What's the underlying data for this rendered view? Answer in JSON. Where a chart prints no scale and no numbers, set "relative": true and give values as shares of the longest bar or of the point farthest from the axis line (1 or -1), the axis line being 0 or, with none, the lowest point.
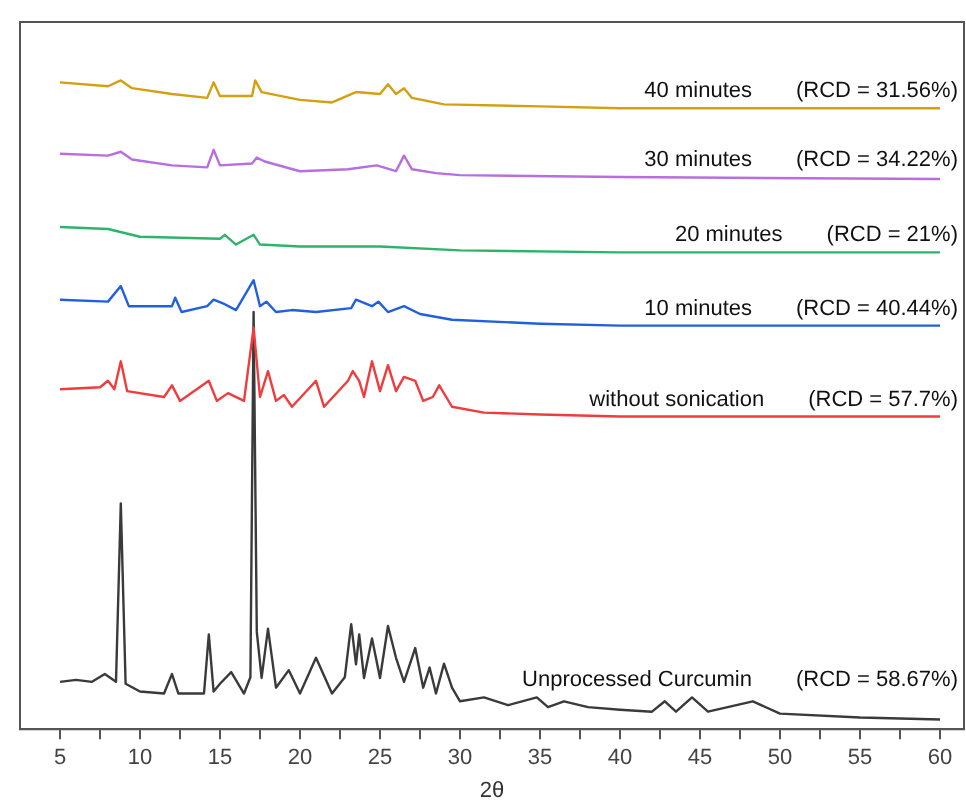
{
  "chart_data": {
    "type": "line",
    "relative": true,
    "xlabel": "2θ",
    "marker": "none",
    "line_style": "solid",
    "xlim": [
      2.5,
      61.5
    ],
    "xticks": [
      5,
      {
        "value": 7.5,
        "label": null
      },
      10,
      {
        "value": 12.5,
        "label": null
      },
      15,
      {
        "value": 17.5,
        "label": null
      },
      20,
      {
        "value": 22.5,
        "label": null
      },
      25,
      {
        "value": 27.5,
        "label": null
      },
      30,
      {
        "value": 32.5,
        "label": null
      },
      35,
      {
        "value": 37.5,
        "label": null
      },
      40,
      {
        "value": 42.5,
        "label": null
      },
      45,
      {
        "value": 47.5,
        "label": null
      },
      50,
      {
        "value": 52.5,
        "label": null
      },
      55,
      {
        "value": 57.5,
        "label": null
      },
      60
    ],
    "series": [
      {
        "name": "40 minutes",
        "color": "#d4a012",
        "x": [
          5,
          8,
          8.8,
          9.5,
          12,
          14.2,
          14.6,
          15,
          17,
          17.2,
          17.6,
          20,
          22,
          23.5,
          25,
          25.5,
          26,
          26.5,
          27,
          29,
          35,
          40,
          60
        ],
        "values": [
          0.997,
          0.991,
          1.0,
          0.988,
          0.979,
          0.973,
          0.997,
          0.976,
          0.976,
          1.0,
          0.982,
          0.97,
          0.966,
          0.982,
          0.979,
          0.994,
          0.979,
          0.988,
          0.973,
          0.963,
          0.96,
          0.957,
          0.957
        ]
      },
      {
        "name": "30 minutes",
        "color": "#b86ee0",
        "x": [
          5,
          8,
          8.8,
          9.5,
          12,
          14.2,
          14.6,
          15,
          17,
          17.3,
          17.8,
          20,
          23,
          24.8,
          26,
          26.5,
          27,
          28.5,
          30,
          40,
          60
        ],
        "values": [
          0.887,
          0.884,
          0.89,
          0.878,
          0.869,
          0.866,
          0.893,
          0.869,
          0.872,
          0.881,
          0.875,
          0.86,
          0.863,
          0.869,
          0.86,
          0.884,
          0.863,
          0.857,
          0.854,
          0.851,
          0.848
        ]
      },
      {
        "name": "20 minutes",
        "color": "#2fb36a",
        "x": [
          5,
          8,
          10,
          15,
          15.3,
          16,
          17.1,
          17.5,
          20,
          25,
          30,
          40,
          60
        ],
        "values": [
          0.774,
          0.771,
          0.759,
          0.756,
          0.762,
          0.747,
          0.762,
          0.747,
          0.744,
          0.744,
          0.738,
          0.735,
          0.735
        ]
      },
      {
        "name": "10 minutes",
        "color": "#2060e0",
        "x": [
          5,
          8,
          8.8,
          9.3,
          12,
          12.2,
          12.6,
          14.2,
          14.6,
          15.3,
          16,
          17.1,
          17.5,
          17.9,
          18.5,
          19.5,
          21,
          23.2,
          23.5,
          24.5,
          24.9,
          25.5,
          26.5,
          27.5,
          29.5,
          35,
          40,
          50,
          60
        ],
        "values": [
          0.662,
          0.659,
          0.683,
          0.652,
          0.652,
          0.665,
          0.643,
          0.652,
          0.662,
          0.655,
          0.646,
          0.692,
          0.652,
          0.659,
          0.643,
          0.646,
          0.643,
          0.649,
          0.662,
          0.652,
          0.659,
          0.643,
          0.652,
          0.64,
          0.631,
          0.625,
          0.622,
          0.622,
          0.622
        ]
      },
      {
        "name": "without sonication",
        "color": "#f03c3c",
        "x": [
          5,
          7.5,
          8,
          8.4,
          8.8,
          9.2,
          11.5,
          12,
          12.5,
          14.3,
          14.8,
          15.5,
          16.5,
          17.1,
          17.5,
          18,
          18.5,
          19,
          19.5,
          21,
          21.5,
          23,
          23.3,
          23.7,
          24,
          24.5,
          25,
          25.5,
          26,
          26.5,
          27.2,
          27.7,
          28.3,
          28.7,
          29.5,
          31.5,
          35,
          40,
          50,
          60
        ],
        "values": [
          0.524,
          0.527,
          0.537,
          0.524,
          0.567,
          0.521,
          0.512,
          0.53,
          0.506,
          0.537,
          0.506,
          0.518,
          0.506,
          0.619,
          0.512,
          0.552,
          0.506,
          0.515,
          0.497,
          0.537,
          0.497,
          0.537,
          0.552,
          0.537,
          0.512,
          0.567,
          0.521,
          0.561,
          0.521,
          0.543,
          0.537,
          0.506,
          0.512,
          0.53,
          0.497,
          0.488,
          0.485,
          0.482,
          0.482,
          0.482
        ]
      },
      {
        "name": "Unprocessed Curcumin",
        "color": "#3a3a3a",
        "x": [
          5,
          6,
          7,
          7.8,
          8.5,
          8.8,
          9.1,
          10,
          11.5,
          12,
          12.4,
          14,
          14.3,
          14.6,
          15,
          15.7,
          16.5,
          16.9,
          17.1,
          17.3,
          17.6,
          18,
          18.5,
          19.3,
          20,
          21,
          22,
          22.8,
          23.2,
          23.5,
          23.7,
          24,
          24.5,
          25,
          25.5,
          26,
          26.5,
          27.2,
          27.7,
          28.1,
          28.5,
          29,
          29.5,
          30,
          31.5,
          33,
          34.8,
          35.5,
          36.5,
          38,
          40,
          42,
          42.8,
          43.5,
          44.5,
          45.5,
          48.3,
          50,
          55,
          60
        ],
        "values": [
          0.073,
          0.076,
          0.073,
          0.085,
          0.073,
          0.348,
          0.07,
          0.058,
          0.055,
          0.085,
          0.055,
          0.055,
          0.146,
          0.058,
          0.07,
          0.088,
          0.055,
          0.08,
          0.643,
          0.15,
          0.079,
          0.155,
          0.064,
          0.091,
          0.055,
          0.11,
          0.055,
          0.08,
          0.162,
          0.1,
          0.146,
          0.079,
          0.14,
          0.079,
          0.159,
          0.11,
          0.073,
          0.125,
          0.064,
          0.095,
          0.055,
          0.101,
          0.064,
          0.043,
          0.049,
          0.037,
          0.049,
          0.034,
          0.043,
          0.034,
          0.03,
          0.027,
          0.043,
          0.027,
          0.049,
          0.027,
          0.043,
          0.024,
          0.018,
          0.015
        ]
      }
    ],
    "annotations": [
      "(RCD = 31.56%)",
      "(RCD = 34.22%)",
      "(RCD = 21%)",
      "(RCD = 40.44%)",
      "(RCD = 57.7%)",
      "(RCD = 58.67%)"
    ]
  }
}
